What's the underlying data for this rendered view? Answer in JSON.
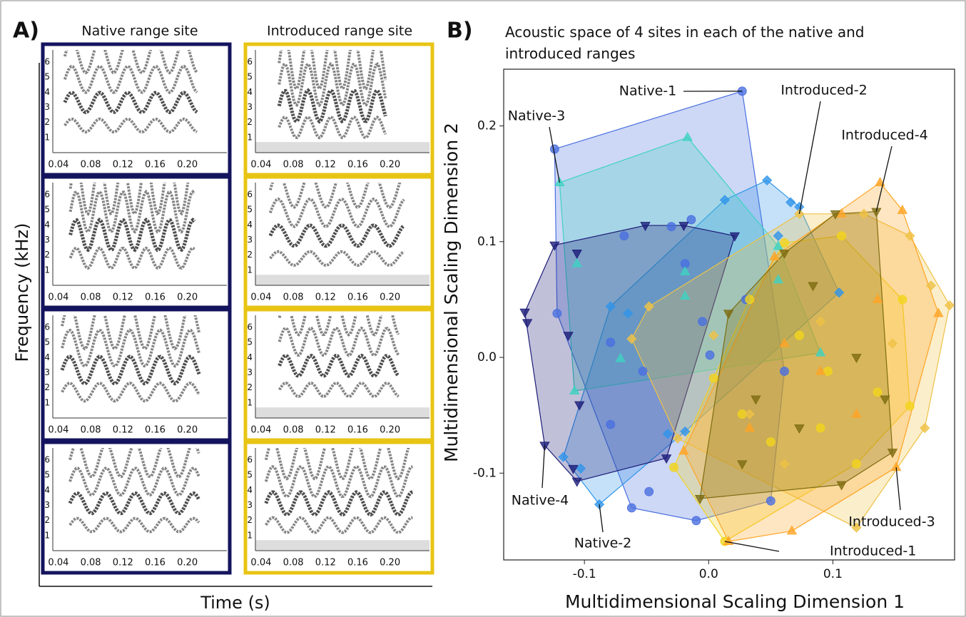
{
  "panel_a": {
    "label": "A)",
    "column_titles": [
      "Native range site",
      "Introduced range site"
    ],
    "column_colors": [
      "#14145e",
      "#e8c414"
    ],
    "ylabel": "Frequency (kHz)",
    "xlabel": "Time (s)",
    "spectrogram": {
      "xlim": [
        0.033,
        0.249
      ],
      "ylim": [
        0,
        6.8
      ],
      "xticks": [
        0.04,
        0.08,
        0.12,
        0.16,
        {
          "value": 0.2,
          "label": "0.20"
        }
      ],
      "yticks": [
        1,
        2,
        3,
        4,
        5,
        6
      ]
    }
  },
  "label_b": "B)",
  "chart_data": {
    "type": "scatter",
    "title": "Acoustic space of 4 sites in each of the native and introduced ranges",
    "xlabel": "Multidimensional Scaling Dimension 1",
    "ylabel": "Multidimensional Scaling Dimension 2",
    "xlim": [
      -0.165,
      0.198
    ],
    "ylim": [
      -0.175,
      0.249
    ],
    "xticks": [
      -0.1,
      {
        "value": 0,
        "label": "0.0"
      },
      0.1
    ],
    "yticks": [
      -0.1,
      {
        "value": 0,
        "label": "0.0"
      },
      0.1,
      0.2
    ],
    "series": [
      {
        "name": "Native-1",
        "color": "#4a6fe0",
        "marker": "circle",
        "x": [
          0.027,
          -0.124,
          -0.068,
          -0.03,
          -0.014,
          -0.122,
          -0.079,
          -0.053,
          0.001,
          -0.005,
          -0.019,
          -0.079,
          -0.062,
          -0.01,
          -0.048,
          0.05,
          0.061,
          0.03
        ],
        "y": [
          0.23,
          0.18,
          0.105,
          0.113,
          0.119,
          0.038,
          0.013,
          -0.012,
          0.002,
          0.031,
          0.081,
          -0.058,
          -0.13,
          -0.141,
          -0.116,
          -0.124,
          -0.012,
          0.05
        ]
      },
      {
        "name": "Native-2",
        "color": "#2f95ea",
        "marker": "diamond",
        "x": [
          -0.088,
          0.047,
          0.066,
          0.013,
          -0.079,
          -0.117,
          -0.103,
          -0.033,
          -0.019,
          -0.065,
          0.105,
          0.056,
          0.073
        ],
        "y": [
          -0.127,
          0.153,
          0.134,
          0.136,
          0.044,
          -0.086,
          -0.096,
          -0.066,
          -0.064,
          0.038,
          0.056,
          0.105,
          0.13
        ]
      },
      {
        "name": "Native-3",
        "color": "#3fd2c2",
        "marker": "triangle",
        "x": [
          -0.12,
          -0.017,
          -0.108,
          0.09,
          0.056,
          0.056,
          -0.071,
          -0.019,
          -0.106,
          -0.019
        ],
        "y": [
          0.151,
          0.19,
          -0.029,
          0.004,
          0.067,
          0.096,
          -0.001,
          0.074,
          0.081,
          0.053
        ]
      },
      {
        "name": "Native-4",
        "color": "#1c1c78",
        "marker": "triangle-down",
        "x": [
          -0.132,
          -0.148,
          -0.106,
          -0.034,
          0.021,
          -0.02,
          -0.051,
          -0.124,
          -0.146,
          -0.104,
          -0.109,
          -0.106,
          -0.113
        ],
        "y": [
          -0.076,
          0.039,
          -0.107,
          -0.087,
          0.105,
          0.114,
          0.114,
          0.097,
          0.03,
          -0.041,
          -0.096,
          0.09,
          0.019
        ]
      },
      {
        "name": "Introduced-1",
        "color": "#f2d41c",
        "marker": "circle",
        "x": [
          0.013,
          -0.028,
          0.162,
          0.156,
          0.107,
          0.061,
          0.033,
          0.004,
          0.09,
          0.119,
          0.05,
          0.073,
          0.027,
          0.096,
          0.136
        ],
        "y": [
          -0.159,
          -0.095,
          -0.042,
          0.05,
          0.105,
          0.099,
          0.05,
          -0.018,
          -0.061,
          -0.092,
          -0.073,
          0.019,
          -0.049,
          -0.012,
          -0.03
        ]
      },
      {
        "name": "Introduced-2",
        "color": "#efc245",
        "marker": "diamond",
        "x": [
          0.073,
          -0.062,
          -0.025,
          0.174,
          0.179,
          0.162,
          0.125,
          0.194,
          -0.048,
          0.119,
          0.033,
          0.09,
          0.148,
          0.061,
          0.004
        ],
        "y": [
          0.124,
          0.016,
          -0.07,
          -0.061,
          0.062,
          0.105,
          0.124,
          0.045,
          0.044,
          -0.147,
          -0.049,
          0.031,
          0.012,
          -0.092,
          0.019
        ]
      },
      {
        "name": "Introduced-3",
        "color": "#ffa424",
        "marker": "triangle",
        "x": [
          0.151,
          0.138,
          0.156,
          0.185,
          0.067,
          0.016,
          -0.02,
          0.053,
          0.107,
          0.09,
          0.119,
          0.033,
          0.136,
          0.061
        ],
        "y": [
          -0.095,
          0.151,
          0.127,
          0.038,
          -0.15,
          -0.159,
          -0.081,
          0.087,
          0.124,
          -0.012,
          -0.049,
          -0.061,
          0.05,
          0.012
        ]
      },
      {
        "name": "Introduced-4",
        "color": "#7d6c10",
        "marker": "triangle-down",
        "x": [
          0.135,
          0.148,
          -0.007,
          0.016,
          0.061,
          0.102,
          0.084,
          0.119,
          0.038,
          0.073,
          0.107,
          0.142,
          0.027
        ],
        "y": [
          0.126,
          -0.082,
          -0.122,
          0.038,
          0.09,
          0.124,
          0.062,
          0.0,
          -0.036,
          -0.061,
          -0.11,
          -0.036,
          -0.092
        ]
      }
    ]
  }
}
